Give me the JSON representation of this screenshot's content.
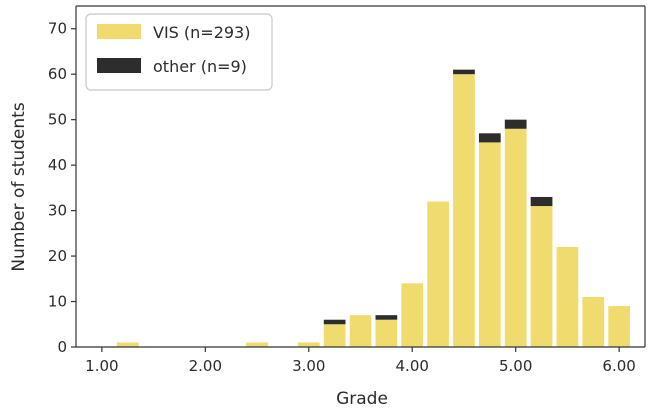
{
  "chart_data": {
    "type": "bar",
    "stacked": true,
    "xlabel": "Grade",
    "ylabel": "Number of students",
    "xlim": [
      0.75,
      6.25
    ],
    "ylim": [
      0,
      75
    ],
    "xticks": [
      1.0,
      2.0,
      3.0,
      4.0,
      5.0,
      6.0
    ],
    "xtick_labels": [
      "1.00",
      "2.00",
      "3.00",
      "4.00",
      "5.00",
      "6.00"
    ],
    "yticks": [
      0,
      10,
      20,
      30,
      40,
      50,
      60,
      70
    ],
    "ytick_labels": [
      "0",
      "10",
      "20",
      "30",
      "40",
      "50",
      "60",
      "70"
    ],
    "grid": false,
    "legend_position": "top-left",
    "bin_width": 0.25,
    "x": [
      1.0,
      1.25,
      1.5,
      1.75,
      2.0,
      2.25,
      2.5,
      2.75,
      3.0,
      3.25,
      3.5,
      3.75,
      4.0,
      4.25,
      4.5,
      4.75,
      5.0,
      5.25,
      5.5,
      5.75,
      6.0
    ],
    "series": [
      {
        "name": "VIS (n=293)",
        "color": "#f0dc6e",
        "values": [
          0,
          1,
          0,
          0,
          0,
          0,
          1,
          0,
          1,
          5,
          7,
          6,
          14,
          32,
          60,
          45,
          48,
          31,
          22,
          11,
          9
        ]
      },
      {
        "name": "other (n=9)",
        "color": "#2d2d2d",
        "values": [
          0,
          0,
          0,
          0,
          0,
          0,
          0,
          0,
          0,
          1,
          0,
          1,
          0,
          0,
          1,
          2,
          2,
          2,
          0,
          0,
          0
        ]
      }
    ]
  }
}
